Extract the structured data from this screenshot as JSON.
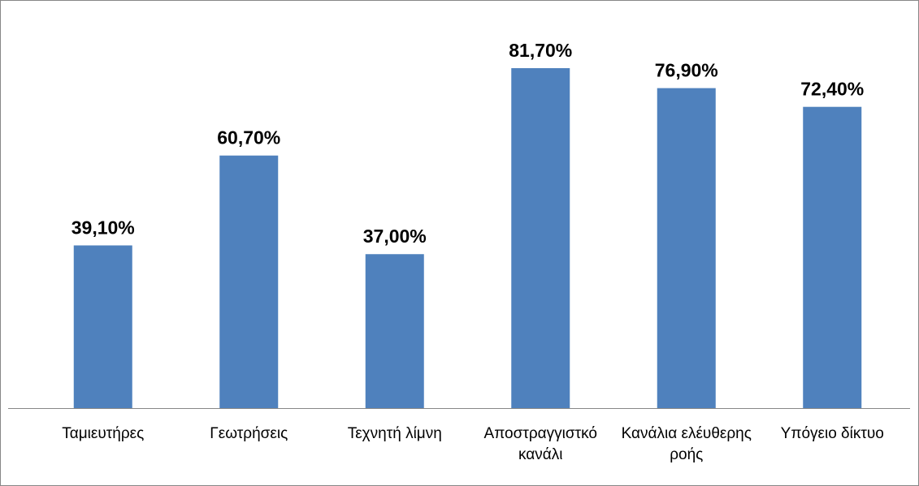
{
  "chart_data": {
    "type": "bar",
    "categories": [
      "Ταμιευτήρες",
      "Γεωτρήσεις",
      "Τεχνητή λίμνη",
      "Αποστραγγιστκό κανάλι",
      "Κανάλια ελέυθερης ροής",
      "Υπόγειο δίκτυο"
    ],
    "values": [
      39.1,
      60.7,
      37.0,
      81.7,
      76.9,
      72.4
    ],
    "value_labels": [
      "39,10%",
      "60,70%",
      "37,00%",
      "81,70%",
      "76,90%",
      "72,40%"
    ],
    "color": "#4f81bd"
  }
}
